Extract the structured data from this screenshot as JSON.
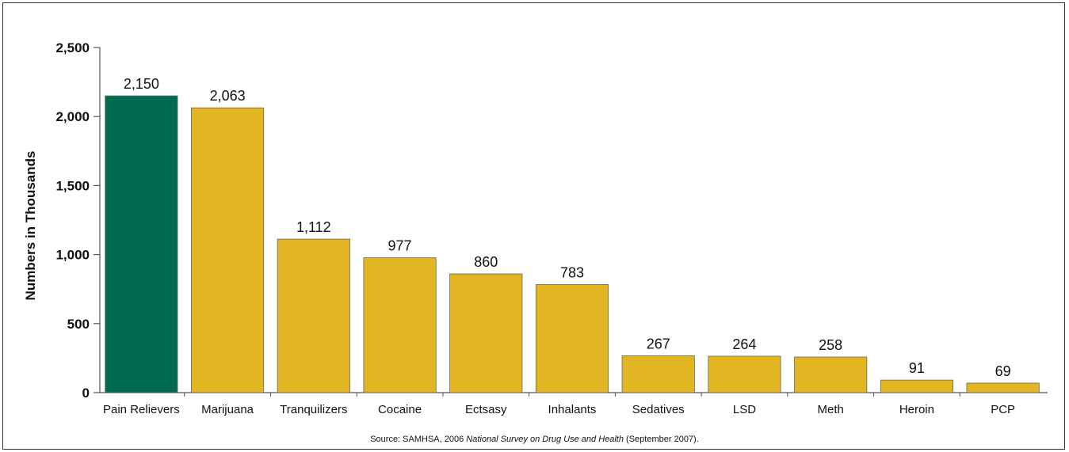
{
  "chart_data": {
    "type": "bar",
    "ylabel": "Numbers in Thousands",
    "ylim": [
      0,
      2500
    ],
    "yticks": [
      0,
      500,
      1000,
      1500,
      2000,
      2500
    ],
    "ytick_labels": [
      "0",
      "500",
      "1,000",
      "1,500",
      "2,000",
      "2,500"
    ],
    "categories": [
      "Pain Relievers",
      "Marijuana",
      "Tranquilizers",
      "Cocaine",
      "Ectsasy",
      "Inhalants",
      "Sedatives",
      "LSD",
      "Meth",
      "Heroin",
      "PCP"
    ],
    "values": [
      2150,
      2063,
      1112,
      977,
      860,
      783,
      267,
      264,
      258,
      91,
      69
    ],
    "value_labels": [
      "2,150",
      "2,063",
      "1,112",
      "977",
      "860",
      "783",
      "267",
      "264",
      "258",
      "91",
      "69"
    ],
    "highlight_index": 0,
    "colors": {
      "highlight": "#006b4f",
      "default": "#e2b623",
      "bar_stroke": "#666666",
      "axis": "#555555"
    },
    "grid": false,
    "legend": "none"
  },
  "source": {
    "prefix": "Source: SAMHSA, 2006 ",
    "italic": "National Survey on Drug Use and Health",
    "suffix": " (September 2007)."
  }
}
